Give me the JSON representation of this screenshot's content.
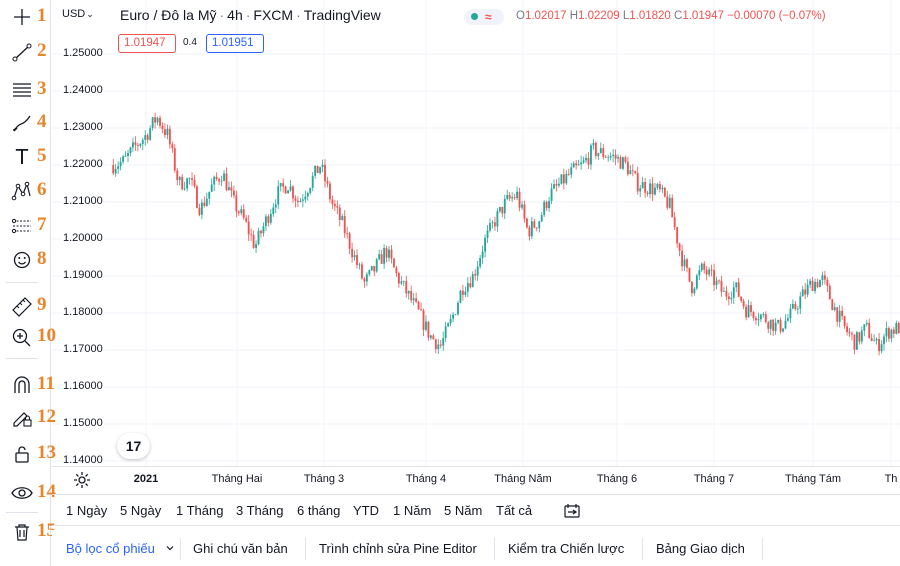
{
  "toolbar": {
    "numbers": [
      "1",
      "2",
      "3",
      "4",
      "5",
      "6",
      "7",
      "8",
      "9",
      "10",
      "11",
      "12",
      "13",
      "14",
      "15"
    ],
    "icons": [
      "crosshair-icon",
      "trend-line-icon",
      "fib-retracement-icon",
      "brush-icon",
      "text-icon",
      "pattern-icon",
      "prediction-icon",
      "emoji-icon",
      "ruler-icon",
      "zoom-in-icon",
      "magnet-icon",
      "lock-pencil-icon",
      "lock-icon",
      "eye-icon",
      "trash-icon"
    ],
    "text_glyph": "T"
  },
  "header": {
    "currency": "USD",
    "currency_caret": "⌄",
    "symbol": "Euro / Đô la Mỹ",
    "interval": "4h",
    "exchange": "FXCM",
    "source": "TradingView",
    "separator": "·",
    "market_wave": "≈",
    "ohlc": {
      "o_label": "O",
      "o": "1.02017",
      "h_label": "H",
      "h": "1.02209",
      "l_label": "L",
      "l": "1.01820",
      "c_label": "C",
      "c": "1.01947",
      "change": "−0.00070 (−0.07%)"
    }
  },
  "quote": {
    "sell": "1.01947",
    "spread": "0.4",
    "buy": "1.01951"
  },
  "logo_text": "17",
  "chart_data": {
    "type": "candlestick",
    "title": "",
    "y_ticks": [
      "1.25000",
      "1.24000",
      "1.23000",
      "1.22000",
      "1.21000",
      "1.20000",
      "1.19000",
      "1.18000",
      "1.17000",
      "1.16000",
      "1.15000",
      "1.14000"
    ],
    "ylim": [
      1.138,
      1.262
    ],
    "x_ticks": [
      "2021",
      "Tháng Hai",
      "Tháng 3",
      "Tháng 4",
      "Tháng Năm",
      "Tháng 6",
      "Tháng 7",
      "Tháng Tám",
      "Th"
    ],
    "x_ticks_bold": [
      "2021"
    ],
    "close_path": [
      [
        0,
        1.22
      ],
      [
        3,
        1.221
      ],
      [
        6,
        1.225
      ],
      [
        9,
        1.228
      ],
      [
        12,
        1.233
      ],
      [
        15,
        1.228
      ],
      [
        18,
        1.215
      ],
      [
        21,
        1.216
      ],
      [
        24,
        1.208
      ],
      [
        27,
        1.214
      ],
      [
        30,
        1.218
      ],
      [
        33,
        1.21
      ],
      [
        36,
        1.205
      ],
      [
        39,
        1.198
      ],
      [
        42,
        1.205
      ],
      [
        45,
        1.212
      ],
      [
        48,
        1.215
      ],
      [
        51,
        1.21
      ],
      [
        54,
        1.215
      ],
      [
        57,
        1.22
      ],
      [
        60,
        1.21
      ],
      [
        63,
        1.204
      ],
      [
        66,
        1.196
      ],
      [
        69,
        1.188
      ],
      [
        72,
        1.192
      ],
      [
        75,
        1.197
      ],
      [
        78,
        1.19
      ],
      [
        81,
        1.185
      ],
      [
        84,
        1.18
      ],
      [
        87,
        1.174
      ],
      [
        90,
        1.171
      ],
      [
        93,
        1.178
      ],
      [
        96,
        1.187
      ],
      [
        99,
        1.19
      ],
      [
        102,
        1.199
      ],
      [
        105,
        1.205
      ],
      [
        108,
        1.21
      ],
      [
        111,
        1.212
      ],
      [
        114,
        1.202
      ],
      [
        117,
        1.205
      ],
      [
        120,
        1.212
      ],
      [
        123,
        1.215
      ],
      [
        126,
        1.218
      ],
      [
        129,
        1.22
      ],
      [
        132,
        1.224
      ],
      [
        135,
        1.223
      ],
      [
        138,
        1.222
      ],
      [
        141,
        1.22
      ],
      [
        144,
        1.215
      ],
      [
        147,
        1.214
      ],
      [
        150,
        1.213
      ],
      [
        153,
        1.209
      ],
      [
        156,
        1.196
      ],
      [
        159,
        1.187
      ],
      [
        162,
        1.192
      ],
      [
        165,
        1.189
      ],
      [
        168,
        1.185
      ],
      [
        171,
        1.187
      ],
      [
        174,
        1.181
      ],
      [
        177,
        1.18
      ],
      [
        180,
        1.178
      ],
      [
        183,
        1.176
      ],
      [
        186,
        1.179
      ],
      [
        189,
        1.184
      ],
      [
        192,
        1.188
      ],
      [
        195,
        1.189
      ],
      [
        198,
        1.182
      ],
      [
        201,
        1.176
      ],
      [
        204,
        1.172
      ],
      [
        207,
        1.176
      ],
      [
        210,
        1.171
      ],
      [
        213,
        1.175
      ],
      [
        216,
        1.176
      ]
    ],
    "candle_count": 320,
    "up_color": "#26a69a",
    "down_color": "#ef5350",
    "grid": true
  },
  "ranges": [
    "1 Ngày",
    "5 Ngày",
    "1 Tháng",
    "3 Tháng",
    "6 tháng",
    "YTD",
    "1 Năm",
    "5 Năm",
    "Tất cả"
  ],
  "bottom_tabs": [
    "Bộ lọc cổ phiếu",
    "Ghi chú văn bản",
    "Trình chỉnh sửa Pine Editor",
    "Kiểm tra Chiến lược",
    "Bảng Giao dịch"
  ],
  "colors": {
    "accent": "#2962ff",
    "up": "#26a69a",
    "down": "#ef5350",
    "annotation": "#e8852a"
  }
}
